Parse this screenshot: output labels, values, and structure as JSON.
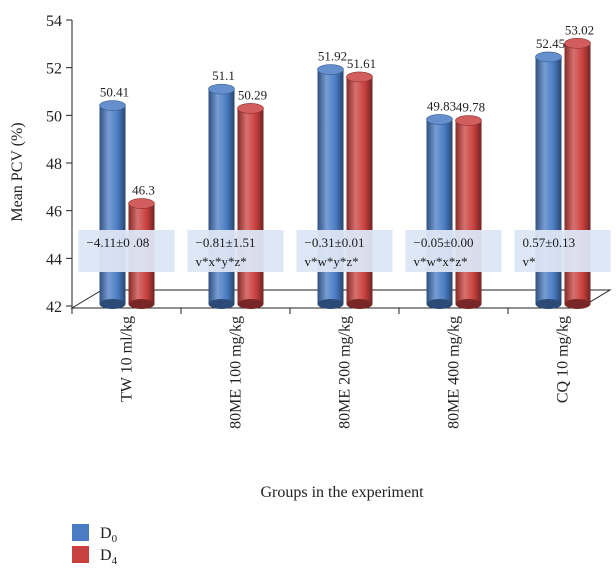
{
  "chart_data": {
    "type": "bar",
    "title": "",
    "xlabel": "Groups in the experiment",
    "ylabel": "Mean PCV (%)",
    "ylim": [
      42,
      54
    ],
    "yticks": [
      42,
      44,
      46,
      48,
      50,
      52,
      54
    ],
    "categories": [
      "TW 10 ml/kg",
      "80ME 100 mg/kg",
      "80ME 200 mg/kg",
      "80ME 400 mg/kg",
      "CQ 10 mg/kg"
    ],
    "series": [
      {
        "name": "D0",
        "name_main": "D",
        "name_sub": "0",
        "color": "#4a7cc4",
        "values": [
          50.41,
          51.1,
          51.92,
          49.83,
          52.45
        ]
      },
      {
        "name": "D4",
        "name_main": "D",
        "name_sub": "4",
        "color": "#c9413f",
        "values": [
          46.3,
          50.29,
          51.61,
          49.78,
          53.02
        ]
      }
    ],
    "annotations": [
      {
        "category": "TW 10 ml/kg",
        "line1": "−4.11±0 .08",
        "line2": ""
      },
      {
        "category": "80ME 100 mg/kg",
        "line1": "−0.81±1.51",
        "line2": "v*x*y*z*"
      },
      {
        "category": "80ME 200 mg/kg",
        "line1": "−0.31±0.01",
        "line2": "v*w*y*z*"
      },
      {
        "category": "80ME 400 mg/kg",
        "line1": "−0.05±0.00",
        "line2": "v*w*x*z*"
      },
      {
        "category": "CQ 10 mg/kg",
        "line1": "0.57±0.13",
        "line2": "v*"
      }
    ],
    "grid": false,
    "legend_position": "bottom-left"
  }
}
